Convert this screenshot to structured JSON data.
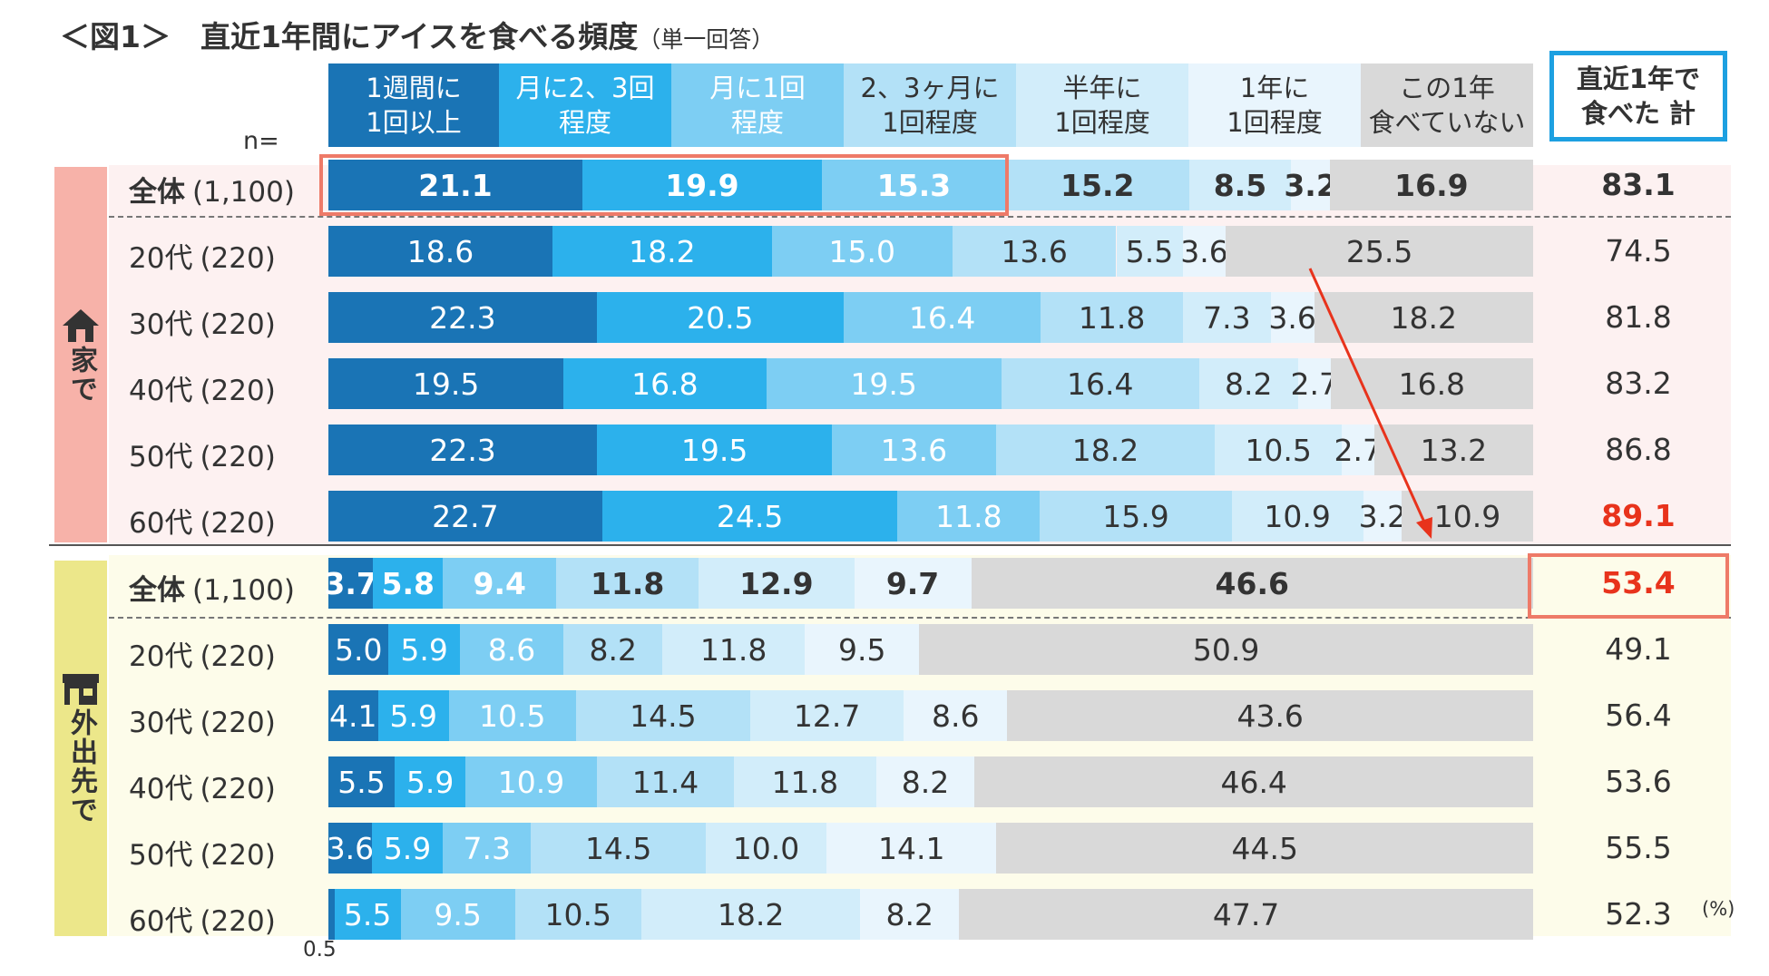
{
  "title": "＜図1＞　直近1年間にアイスを食べる頻度",
  "subtitle": "（単一回答）",
  "n_label": "n=",
  "unit": "(%)",
  "total_header": "直近1年で\n食べた 計",
  "group_labels": {
    "home": "家で",
    "out": "外出先で"
  },
  "small_note": "0.5",
  "colors": {
    "seg": [
      "#1a74b5",
      "#2cb1ec",
      "#7dcef3",
      "#b3e1f7",
      "#d2edfa",
      "#e9f5fd",
      "#d9d9d9"
    ],
    "text": [
      "#ffffff",
      "#ffffff",
      "#ffffff",
      "#333333",
      "#333333",
      "#333333",
      "#333333"
    ],
    "highlight": "#ee7a68",
    "accent_red": "#e8331c",
    "total_box": "#1da0e1",
    "home_bg": "#f7b2a9",
    "out_bg": "#ece78a"
  },
  "chart_data": {
    "type": "bar",
    "stacked": true,
    "orientation": "horizontal",
    "series": [
      {
        "name": "1週間に\n1回以上"
      },
      {
        "name": "月に2、3回\n程度"
      },
      {
        "name": "月に1回\n程度"
      },
      {
        "name": "2、3ヶ月に\n1回程度"
      },
      {
        "name": "半年に\n1回程度"
      },
      {
        "name": "1年に\n1回程度"
      },
      {
        "name": "この1年\n食べていない"
      }
    ],
    "rows": [
      {
        "group": "home",
        "label": "全体",
        "n": "(1,100)",
        "bold": true,
        "values": [
          21.1,
          19.9,
          15.3,
          15.2,
          8.5,
          3.2,
          16.9
        ],
        "labels": [
          "21.1",
          "19.9",
          "15.3",
          "15.2",
          "8.5",
          "3.2",
          "16.9"
        ],
        "total": "83.1"
      },
      {
        "group": "home",
        "label": "20代",
        "n": "(220)",
        "values": [
          18.6,
          18.2,
          15.0,
          13.6,
          5.5,
          3.6,
          25.5
        ],
        "labels": [
          "18.6",
          "18.2",
          "15.0",
          "13.6",
          "5.5",
          "3.6",
          "25.5"
        ],
        "total": "74.5"
      },
      {
        "group": "home",
        "label": "30代",
        "n": "(220)",
        "values": [
          22.3,
          20.5,
          16.4,
          11.8,
          7.3,
          3.6,
          18.2
        ],
        "labels": [
          "22.3",
          "20.5",
          "16.4",
          "11.8",
          "7.3",
          "3.6",
          "18.2"
        ],
        "total": "81.8"
      },
      {
        "group": "home",
        "label": "40代",
        "n": "(220)",
        "values": [
          19.5,
          16.8,
          19.5,
          16.4,
          8.2,
          2.7,
          16.8
        ],
        "labels": [
          "19.5",
          "16.8",
          "19.5",
          "16.4",
          "8.2",
          "2.7",
          "16.8"
        ],
        "total": "83.2"
      },
      {
        "group": "home",
        "label": "50代",
        "n": "(220)",
        "values": [
          22.3,
          19.5,
          13.6,
          18.2,
          10.5,
          2.7,
          13.2
        ],
        "labels": [
          "22.3",
          "19.5",
          "13.6",
          "18.2",
          "10.5",
          "2.7",
          "13.2"
        ],
        "total": "86.8"
      },
      {
        "group": "home",
        "label": "60代",
        "n": "(220)",
        "values": [
          22.7,
          24.5,
          11.8,
          15.9,
          10.9,
          3.2,
          10.9
        ],
        "labels": [
          "22.7",
          "24.5",
          "11.8",
          "15.9",
          "10.9",
          "3.2",
          "10.9"
        ],
        "total": "89.1",
        "total_red": true
      },
      {
        "group": "out",
        "label": "全体",
        "n": "(1,100)",
        "bold": true,
        "values": [
          3.7,
          5.8,
          9.4,
          11.8,
          12.9,
          9.7,
          46.6
        ],
        "labels": [
          "3.7",
          "5.8",
          "9.4",
          "11.8",
          "12.9",
          "9.7",
          "46.6"
        ],
        "total": "53.4",
        "total_red": true
      },
      {
        "group": "out",
        "label": "20代",
        "n": "(220)",
        "values": [
          5.0,
          5.9,
          8.6,
          8.2,
          11.8,
          9.5,
          50.9
        ],
        "labels": [
          "5.0",
          "5.9",
          "8.6",
          "8.2",
          "11.8",
          "9.5",
          "50.9"
        ],
        "total": "49.1"
      },
      {
        "group": "out",
        "label": "30代",
        "n": "(220)",
        "values": [
          4.1,
          5.9,
          10.5,
          14.5,
          12.7,
          8.6,
          43.6
        ],
        "labels": [
          "4.1",
          "5.9",
          "10.5",
          "14.5",
          "12.7",
          "8.6",
          "43.6"
        ],
        "total": "56.4"
      },
      {
        "group": "out",
        "label": "40代",
        "n": "(220)",
        "values": [
          5.5,
          5.9,
          10.9,
          11.4,
          11.8,
          8.2,
          46.4
        ],
        "labels": [
          "5.5",
          "5.9",
          "10.9",
          "11.4",
          "11.8",
          "8.2",
          "46.4"
        ],
        "total": "53.6"
      },
      {
        "group": "out",
        "label": "50代",
        "n": "(220)",
        "values": [
          3.6,
          5.9,
          7.3,
          14.5,
          10.0,
          14.1,
          44.5
        ],
        "labels": [
          "3.6",
          "5.9",
          "7.3",
          "14.5",
          "10.0",
          "14.1",
          "44.5"
        ],
        "total": "55.5"
      },
      {
        "group": "out",
        "label": "60代",
        "n": "(220)",
        "values": [
          0.5,
          5.5,
          9.5,
          10.5,
          18.2,
          8.2,
          47.7
        ],
        "labels": [
          "",
          "5.5",
          "9.5",
          "10.5",
          "18.2",
          "8.2",
          "47.7"
        ],
        "total": "52.3"
      }
    ]
  }
}
